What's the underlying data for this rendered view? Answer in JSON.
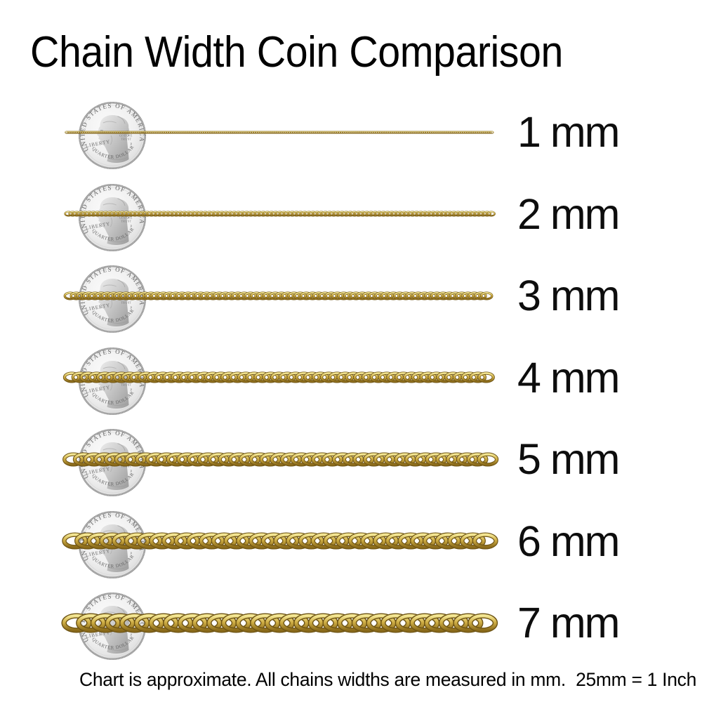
{
  "title": "Chain Width Coin Comparison",
  "footer_note": "Chart is approximate. All chains widths are measured in mm.  25mm = 1 Inch",
  "coin": {
    "top_text": "UNITED STATES OF AMERICA",
    "bottom_text": "QUARTER DOLLAR",
    "left_text": "LIBERTY",
    "motto_line1": "GOD WE",
    "motto_line2": "TRUST",
    "mint_mark": "P"
  },
  "rows": [
    {
      "label": "1 mm",
      "mm": 1
    },
    {
      "label": "2 mm",
      "mm": 2
    },
    {
      "label": "3 mm",
      "mm": 3
    },
    {
      "label": "4 mm",
      "mm": 4
    },
    {
      "label": "5 mm",
      "mm": 5
    },
    {
      "label": "6 mm",
      "mm": 6
    },
    {
      "label": "7 mm",
      "mm": 7
    }
  ],
  "layout_note": "chains measured against US quarter coins",
  "colors": {
    "gold_outline": "#6e5414",
    "gold_light": "#f2e492",
    "gold_mid": "#cfae45",
    "gold_dark": "#8a6a1a",
    "coin_edge": "#8e8e8e",
    "text": "#0d0d0d"
  }
}
